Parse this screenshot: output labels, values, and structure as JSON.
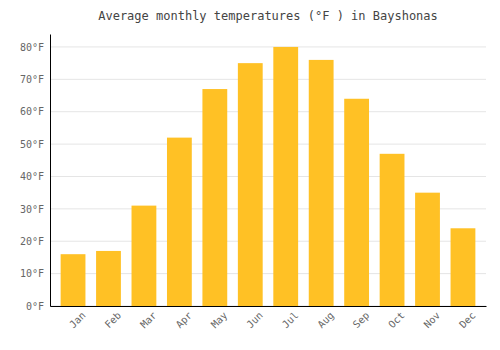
{
  "chart_data": {
    "type": "bar",
    "title": "Average monthly temperatures (°F ) in Bayshonas",
    "categories": [
      "Jan",
      "Feb",
      "Mar",
      "Apr",
      "May",
      "Jun",
      "Jul",
      "Aug",
      "Sep",
      "Oct",
      "Nov",
      "Dec"
    ],
    "values": [
      16,
      17,
      31,
      52,
      67,
      75,
      80,
      76,
      64,
      47,
      35,
      24
    ],
    "color": "#FFC125",
    "ylim": [
      0,
      84
    ],
    "yticks": [
      {
        "value": 0,
        "label": "0°F"
      },
      {
        "value": 10,
        "label": "10°F"
      },
      {
        "value": 20,
        "label": "20°F"
      },
      {
        "value": 30,
        "label": "30°F"
      },
      {
        "value": 40,
        "label": "40°F"
      },
      {
        "value": 50,
        "label": "50°F"
      },
      {
        "value": 60,
        "label": "60°F"
      },
      {
        "value": 70,
        "label": "70°F"
      },
      {
        "value": 80,
        "label": "80°F"
      }
    ],
    "grid": true
  }
}
